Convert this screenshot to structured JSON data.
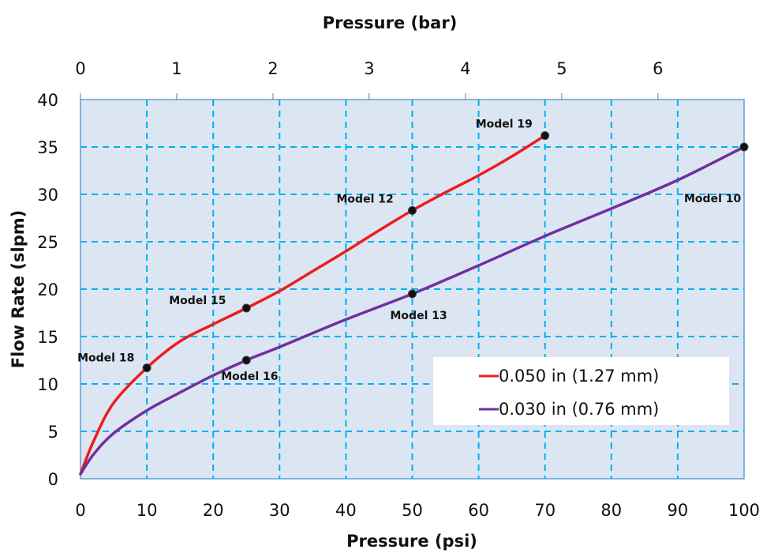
{
  "chart_data": {
    "type": "line",
    "x_bottom_label": "Pressure (psi)",
    "x_top_label": "Pressure (bar)",
    "ylabel": "Flow Rate (slpm)",
    "xlim": [
      0,
      100
    ],
    "ylim": [
      0,
      40
    ],
    "x_ticks": [
      0,
      10,
      20,
      30,
      40,
      50,
      60,
      70,
      80,
      90,
      100
    ],
    "y_ticks": [
      0,
      5,
      10,
      15,
      20,
      25,
      30,
      35,
      40
    ],
    "x_top_ticks": [
      0,
      1,
      2,
      3,
      4,
      5,
      6
    ],
    "psi_per_bar": 14.5038,
    "grid": true,
    "plot_background": "#dce6f2",
    "grid_color": "#00b0f0",
    "legend_position": "lower-right",
    "series": [
      {
        "name": "0.050 in (1.27 mm)",
        "color": "#ee1c1c",
        "curve": [
          [
            0,
            0.5
          ],
          [
            2,
            4
          ],
          [
            5,
            8
          ],
          [
            10,
            11.7
          ],
          [
            15,
            14.5
          ],
          [
            20,
            16.3
          ],
          [
            25,
            18
          ],
          [
            30,
            19.8
          ],
          [
            35,
            21.9
          ],
          [
            40,
            24
          ],
          [
            45,
            26.2
          ],
          [
            50,
            28.3
          ],
          [
            55,
            30.2
          ],
          [
            60,
            32
          ],
          [
            65,
            34
          ],
          [
            70,
            36.2
          ]
        ],
        "points": [
          {
            "x": 10,
            "y": 11.7,
            "label": "Model 18"
          },
          {
            "x": 25,
            "y": 18,
            "label": "Model 15"
          },
          {
            "x": 50,
            "y": 28.3,
            "label": "Model 12"
          },
          {
            "x": 70,
            "y": 36.2,
            "label": "Model 19"
          }
        ]
      },
      {
        "name": "0.030 in (0.76 mm)",
        "color": "#7030a0",
        "curve": [
          [
            0,
            0.5
          ],
          [
            2,
            2.6
          ],
          [
            5,
            4.8
          ],
          [
            10,
            7.2
          ],
          [
            15,
            9.1
          ],
          [
            20,
            10.9
          ],
          [
            25,
            12.5
          ],
          [
            30,
            13.9
          ],
          [
            40,
            16.8
          ],
          [
            50,
            19.5
          ],
          [
            60,
            22.5
          ],
          [
            70,
            25.6
          ],
          [
            80,
            28.5
          ],
          [
            90,
            31.5
          ],
          [
            100,
            35
          ]
        ],
        "points": [
          {
            "x": 25,
            "y": 12.5,
            "label": "Model 16"
          },
          {
            "x": 50,
            "y": 19.5,
            "label": "Model 13"
          },
          {
            "x": 100,
            "y": 35,
            "label": "Model 10"
          }
        ]
      }
    ]
  }
}
